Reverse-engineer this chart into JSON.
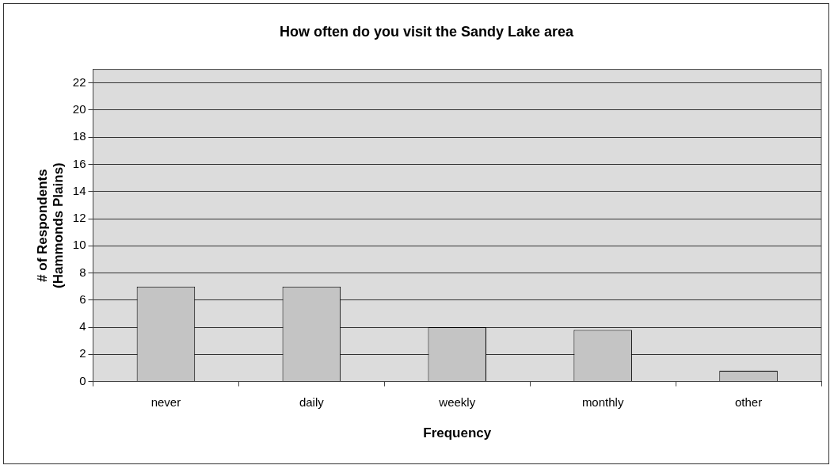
{
  "chart_data": {
    "type": "bar",
    "title": "How often do you visit the Sandy Lake area",
    "xlabel": "Frequency",
    "ylabel": "# of Respondents\n(Hammonds Plains)",
    "categories": [
      "never",
      "daily",
      "weekly",
      "monthly",
      "other"
    ],
    "values": [
      7,
      7,
      4,
      3.8,
      0.8
    ],
    "color": "#c4c4c4",
    "ylim": [
      0,
      23
    ],
    "yticks": [
      0,
      2,
      4,
      6,
      8,
      10,
      12,
      14,
      16,
      18,
      20,
      22
    ],
    "grid": "y",
    "legend": false
  }
}
